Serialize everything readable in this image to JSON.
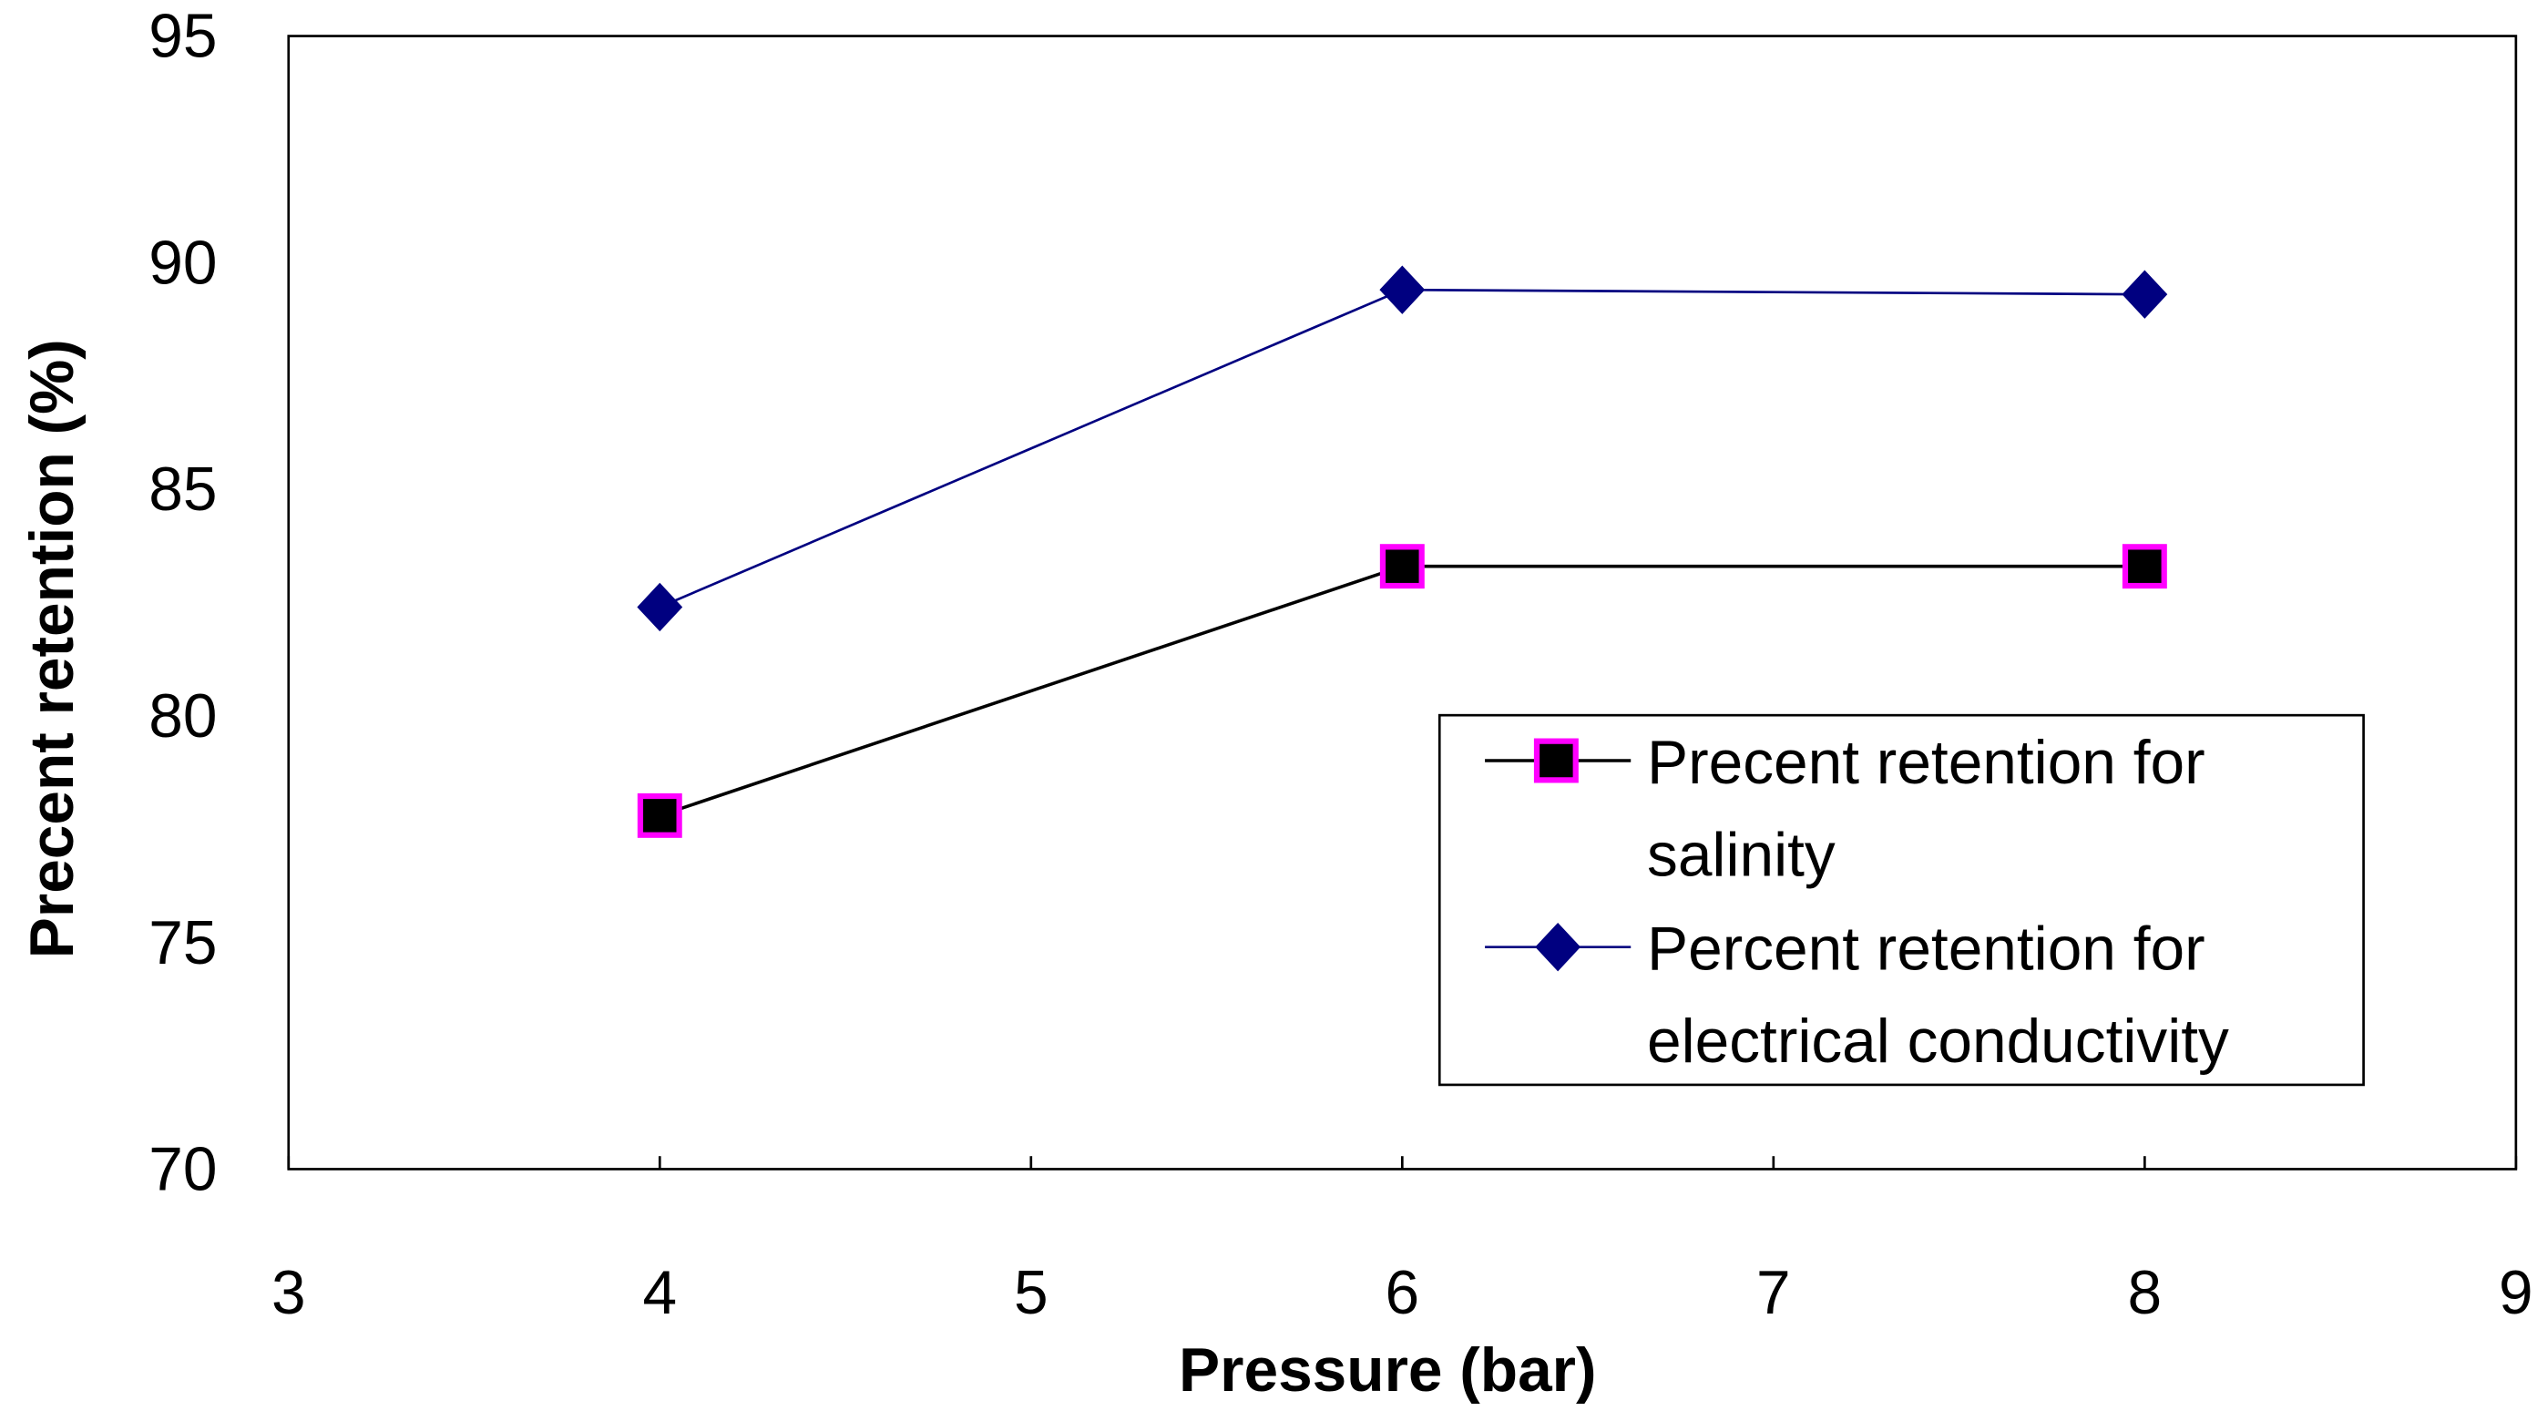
{
  "chart_data": {
    "type": "line",
    "xlabel": "Pressure (bar)",
    "ylabel": "Precent retention (%)",
    "xlim": [
      3,
      9
    ],
    "ylim": [
      70,
      95
    ],
    "xticks": [
      3,
      4,
      5,
      6,
      7,
      8,
      9
    ],
    "yticks": [
      70,
      75,
      80,
      85,
      90,
      95
    ],
    "grid": false,
    "legend_position": "bottom-right",
    "series": [
      {
        "name": "Precent retention for salinity",
        "name_lines": [
          "Precent retention for",
          "salinity"
        ],
        "x": [
          4,
          6,
          8
        ],
        "y": [
          77.8,
          83.3,
          83.3
        ],
        "line_color": "#000000",
        "marker": "square",
        "marker_fill": "#000000",
        "marker_edge": "#FF00FF"
      },
      {
        "name": "Percent retention for electrical conductivity",
        "name_lines": [
          "Percent retention for",
          "electrical conductivity"
        ],
        "x": [
          4,
          6,
          8
        ],
        "y": [
          82.4,
          89.4,
          89.3
        ],
        "line_color": "#000080",
        "marker": "diamond",
        "marker_fill": "#000080",
        "marker_edge": "#000080"
      }
    ]
  }
}
